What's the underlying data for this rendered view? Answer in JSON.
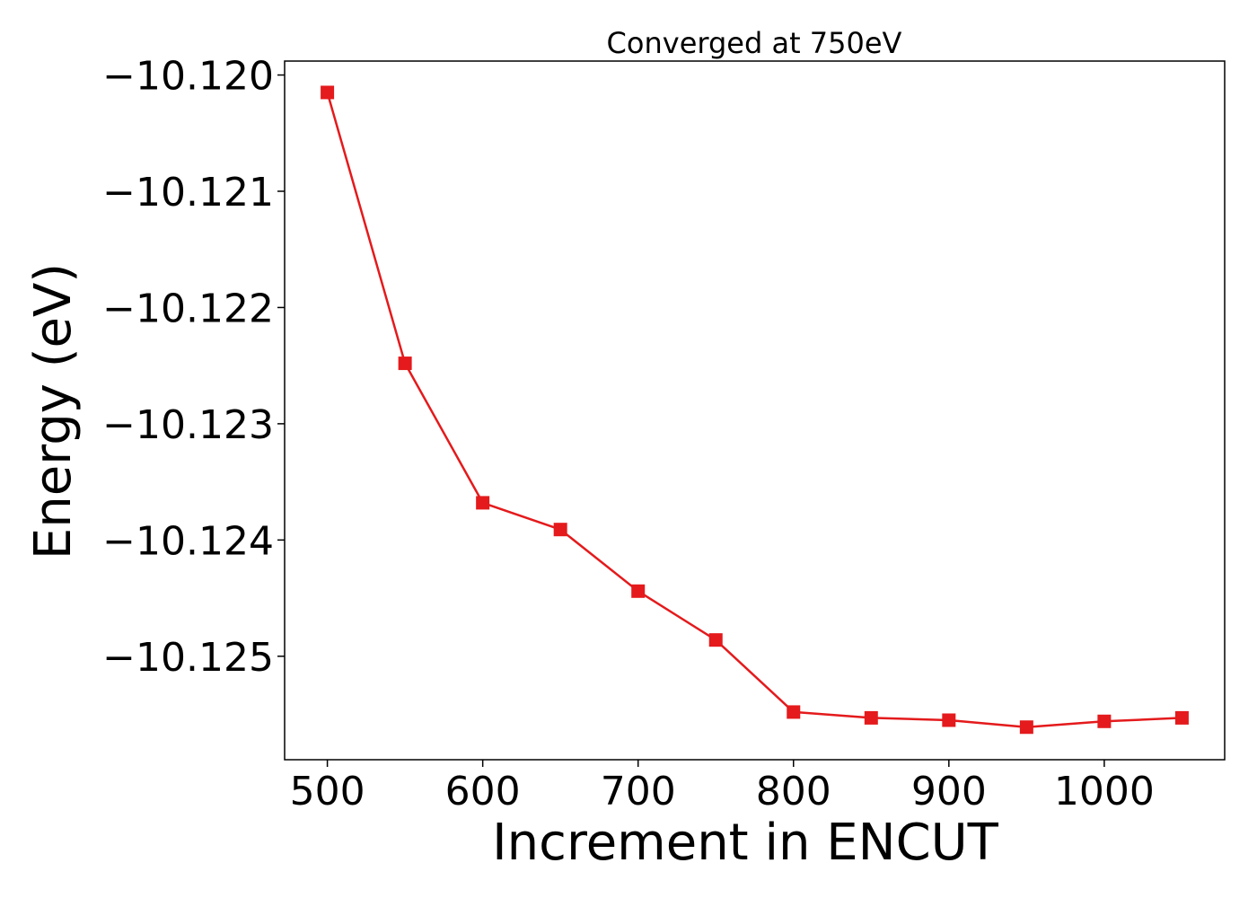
{
  "chart_data": {
    "type": "line",
    "title": "Converged at 750eV",
    "xlabel": "Increment in ENCUT",
    "ylabel": "Energy (eV)",
    "x": [
      500,
      550,
      600,
      650,
      700,
      750,
      800,
      850,
      900,
      950,
      1000,
      1050
    ],
    "series": [
      {
        "name": "",
        "values": [
          -10.12015,
          -10.12248,
          -10.12368,
          -10.12391,
          -10.12444,
          -10.12486,
          -10.12548,
          -10.12553,
          -10.12555,
          -10.12561,
          -10.12556,
          -10.12553
        ],
        "color": "#e41a1c",
        "marker": "square"
      }
    ],
    "xlim": [
      472.5,
      1077.5
    ],
    "ylim": [
      -10.12589,
      -10.11988
    ],
    "xticks": [
      500,
      600,
      700,
      800,
      900,
      1000
    ],
    "xtick_labels": [
      "500",
      "600",
      "700",
      "800",
      "900",
      "1000"
    ],
    "yticks": [
      -10.12,
      -10.121,
      -10.122,
      -10.123,
      -10.124,
      -10.125
    ],
    "ytick_labels": [
      "−10.120",
      "−10.121",
      "−10.122",
      "−10.123",
      "−10.124",
      "−10.125"
    ],
    "grid": false,
    "legend": "none"
  }
}
